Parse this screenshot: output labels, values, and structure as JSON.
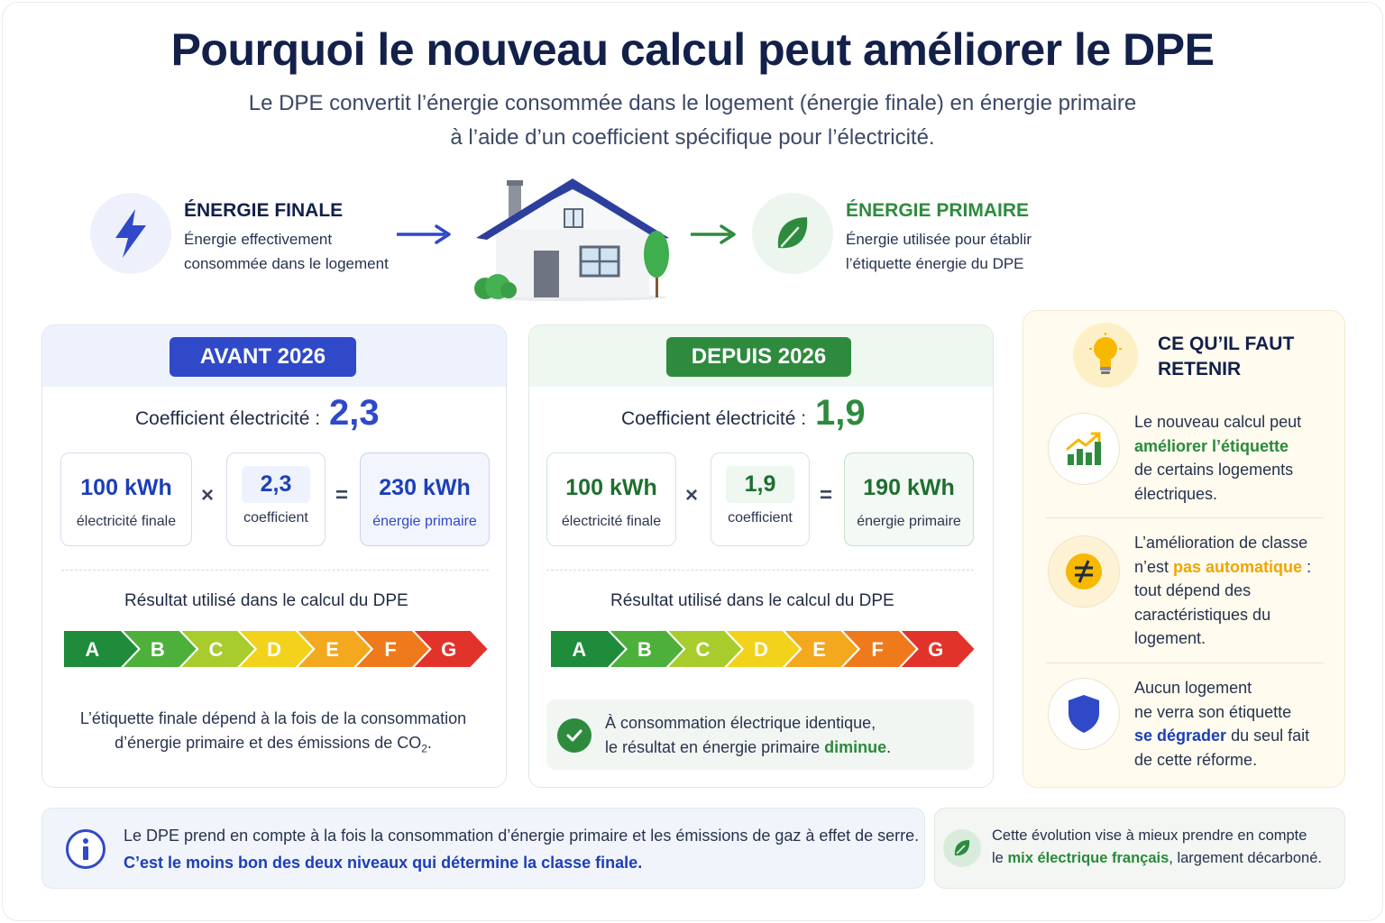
{
  "header": {
    "title": "Pourquoi le nouveau calcul peut améliorer le DPE",
    "subtitle_line1": "Le DPE convertit l’énergie consommée dans le logement (énergie finale) en énergie primaire",
    "subtitle_line2": "à l’aide d’un coefficient spécifique pour l’électricité."
  },
  "flow": {
    "finale": {
      "title": "ÉNERGIE FINALE",
      "line1": "Énergie effectivement",
      "line2": "consommée dans le logement"
    },
    "primaire": {
      "title": "ÉNERGIE PRIMAIRE",
      "line1": "Énergie utilisée pour établir",
      "line2": "l’étiquette énergie du DPE"
    }
  },
  "before": {
    "badge": "AVANT 2026",
    "coef_label": "Coefficient électricité :",
    "coef_value": "2,3",
    "input_value": "100 kWh",
    "input_label": "électricité finale",
    "mult_value": "2,3",
    "mult_label": "coefficient",
    "result_value": "230 kWh",
    "result_label": "énergie primaire",
    "times": "×",
    "equals": "=",
    "result_title": "Résultat utilisé dans le calcul du DPE",
    "note_line1": "L’étiquette finale dépend à la fois de la consommation",
    "note_line2a": "d’énergie primaire et des émissions de CO",
    "note_sub": "2",
    "note_end": "."
  },
  "after": {
    "badge": "DEPUIS 2026",
    "coef_label": "Coefficient électricité :",
    "coef_value": "1,9",
    "input_value": "100 kWh",
    "input_label": "électricité finale",
    "mult_value": "1,9",
    "mult_label": "coefficient",
    "result_value": "190 kWh",
    "result_label": "énergie primaire",
    "times": "×",
    "equals": "=",
    "result_title": "Résultat utilisé dans le calcul du DPE",
    "note_line1": "À consommation électrique identique,",
    "note_line2a": "le résultat en énergie primaire ",
    "note_highlight": "diminue",
    "note_end": "."
  },
  "scale": {
    "labels": [
      "A",
      "B",
      "C",
      "D",
      "E",
      "F",
      "G"
    ],
    "colors": [
      "#1e8c3a",
      "#4db03b",
      "#a8cc2c",
      "#f2d21a",
      "#f4a81e",
      "#ef7a1c",
      "#e2332a"
    ]
  },
  "panel": {
    "title_line1": "CE QU’IL FAUT",
    "title_line2": "RETENIR",
    "item1": {
      "l1": "Le nouveau calcul peut",
      "l2": "améliorer l’étiquette",
      "l3": "de certains logements",
      "l4": "électriques."
    },
    "item2": {
      "l1": "L’amélioration de classe",
      "l2a": "n’est ",
      "l2b": "pas automatique",
      "l2c": " :",
      "l3": "tout dépend des",
      "l4": "caractéristiques du",
      "l5": "logement."
    },
    "item3": {
      "l1": "Aucun logement",
      "l2": "ne verra son étiquette",
      "l3a": "se dégrader",
      "l3b": " du seul fait",
      "l4": "de cette réforme."
    }
  },
  "footer": {
    "info_line1": "Le DPE prend en compte à la fois la consommation d’énergie primaire et les émissions de gaz à effet de serre.",
    "info_line2": "C’est le moins bon des deux niveaux qui détermine la classe finale.",
    "mix_line1": "Cette évolution vise à mieux prendre en compte",
    "mix_line2a": "le ",
    "mix_line2b": "mix électrique français",
    "mix_line2c": ", largement décarboné."
  },
  "colors": {
    "navy": "#12204a",
    "blue": "#2f49c9",
    "green": "#2e8b3e",
    "amber": "#f0a500"
  }
}
